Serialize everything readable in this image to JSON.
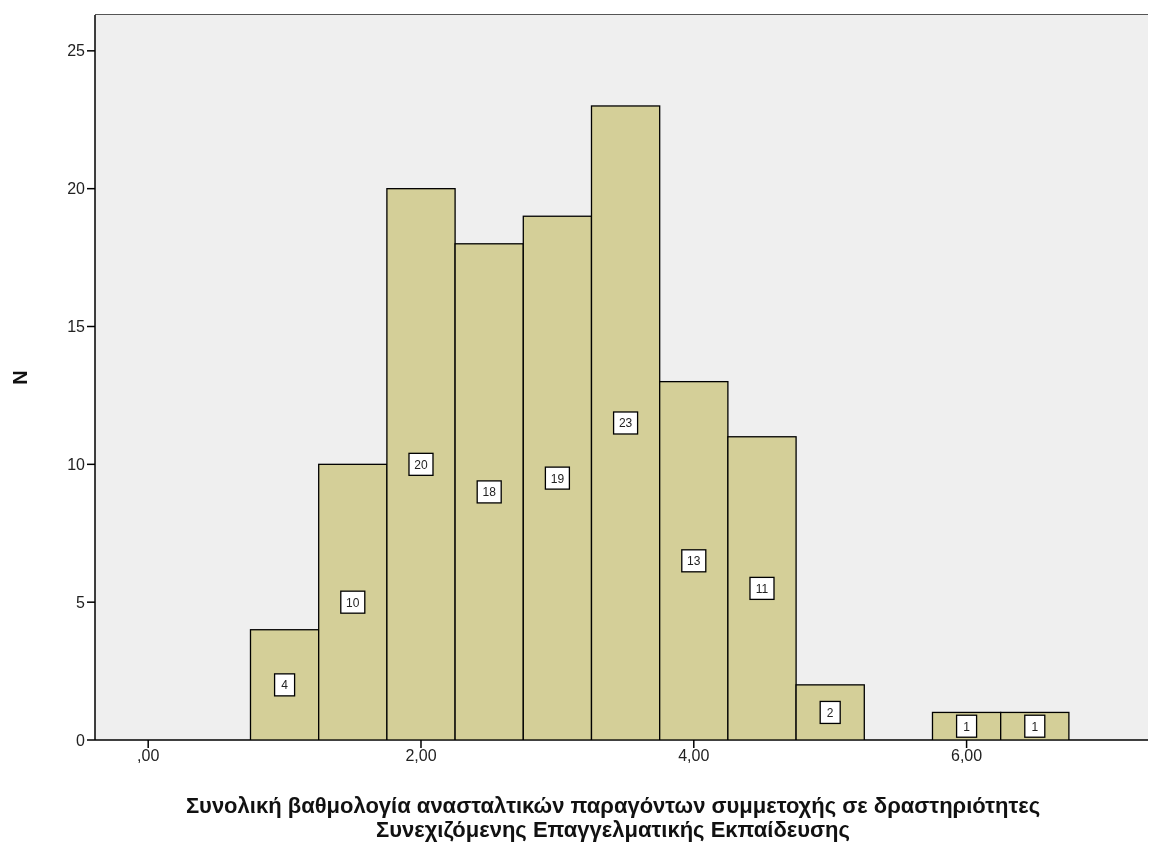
{
  "chart_data": {
    "type": "histogram",
    "xlabel": "Συνολική βαθμολογία ανασταλτικών παραγόντων συμμετοχής σε δραστηριότητες Συνεχιζόμενης Επαγγελματικής Εκπαίδευσης",
    "ylabel": "N",
    "bins": [
      0.75,
      1.25,
      1.75,
      2.25,
      2.75,
      3.25,
      3.75,
      4.25,
      4.75,
      5.25,
      5.75,
      6.25,
      6.75
    ],
    "values": [
      4,
      10,
      20,
      18,
      19,
      23,
      13,
      11,
      2,
      0,
      1,
      1
    ],
    "value_labels": [
      "4",
      "10",
      "20",
      "18",
      "19",
      "23",
      "13",
      "11",
      "2",
      null,
      "1",
      "1"
    ],
    "color": "#d4cf98",
    "xlim": [
      -0.39,
      7.33
    ],
    "ylim": [
      0,
      26.3
    ],
    "xticks": [
      {
        "value": 0,
        "label": ",00"
      },
      {
        "value": 2,
        "label": "2,00"
      },
      {
        "value": 4,
        "label": "4,00"
      },
      {
        "value": 6,
        "label": "6,00"
      }
    ],
    "yticks": [
      0,
      5,
      10,
      15,
      20,
      25
    ],
    "grid": false
  }
}
